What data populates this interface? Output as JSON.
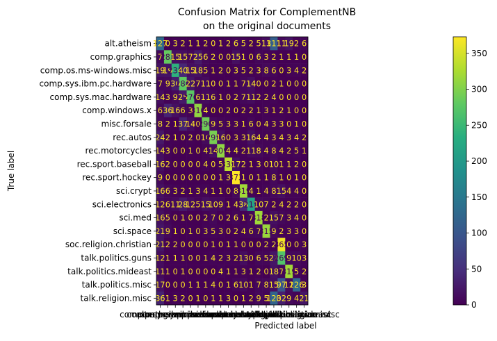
{
  "chart_data": {
    "type": "heatmap",
    "title": [
      "Confusion Matrix for ComplementNB",
      "on the original documents"
    ],
    "xlabel": "Predicted label",
    "ylabel": "True label",
    "labels": [
      "alt.atheism",
      "comp.graphics",
      "comp.os.ms-windows.misc",
      "comp.sys.ibm.pc.hardware",
      "comp.sys.mac.hardware",
      "comp.windows.x",
      "misc.forsale",
      "rec.autos",
      "rec.motorcycles",
      "rec.sport.baseball",
      "rec.sport.hockey",
      "sci.crypt",
      "sci.electronics",
      "sci.med",
      "sci.space",
      "soc.religion.christian",
      "talk.politics.guns",
      "talk.politics.mideast",
      "talk.politics.misc",
      "talk.religion.misc"
    ],
    "matrix": [
      [
        127,
        0,
        3,
        2,
        1,
        1,
        2,
        0,
        1,
        2,
        6,
        5,
        2,
        5,
        13,
        111,
        11,
        19,
        2,
        6
      ],
      [
        7,
        283,
        15,
        15,
        7,
        25,
        6,
        2,
        0,
        0,
        15,
        1,
        0,
        6,
        3,
        2,
        1,
        1,
        1,
        0
      ],
      [
        19,
        19,
        238,
        40,
        15,
        18,
        5,
        1,
        2,
        0,
        3,
        5,
        2,
        3,
        8,
        6,
        0,
        3,
        4,
        2
      ],
      [
        7,
        9,
        30,
        280,
        22,
        7,
        11,
        0,
        0,
        1,
        1,
        7,
        14,
        0,
        0,
        2,
        1,
        0,
        0,
        0
      ],
      [
        14,
        3,
        9,
        25,
        276,
        6,
        11,
        6,
        1,
        0,
        2,
        7,
        11,
        2,
        2,
        4,
        0,
        0,
        0,
        0
      ],
      [
        6,
        36,
        16,
        6,
        3,
        310,
        4,
        0,
        0,
        2,
        0,
        2,
        2,
        1,
        3,
        1,
        2,
        1,
        0,
        0
      ],
      [
        8,
        2,
        1,
        37,
        14,
        0,
        290,
        9,
        5,
        3,
        3,
        1,
        6,
        0,
        4,
        3,
        3,
        0,
        1,
        0
      ],
      [
        24,
        2,
        1,
        0,
        2,
        0,
        10,
        295,
        16,
        0,
        3,
        3,
        16,
        4,
        4,
        3,
        4,
        3,
        4,
        2
      ],
      [
        14,
        3,
        0,
        0,
        1,
        0,
        4,
        14,
        309,
        4,
        4,
        2,
        11,
        8,
        4,
        8,
        4,
        2,
        5,
        1
      ],
      [
        16,
        2,
        0,
        0,
        0,
        0,
        4,
        0,
        5,
        335,
        17,
        2,
        1,
        3,
        0,
        10,
        1,
        1,
        2,
        0
      ],
      [
        9,
        0,
        0,
        0,
        0,
        0,
        0,
        0,
        1,
        3,
        373,
        1,
        0,
        1,
        1,
        8,
        1,
        0,
        1,
        0
      ],
      [
        16,
        6,
        3,
        2,
        1,
        3,
        4,
        1,
        1,
        0,
        8,
        319,
        4,
        1,
        4,
        8,
        15,
        4,
        4,
        0
      ],
      [
        12,
        6,
        11,
        28,
        12,
        5,
        15,
        10,
        9,
        1,
        4,
        38,
        215,
        10,
        7,
        2,
        4,
        2,
        2,
        0
      ],
      [
        16,
        5,
        0,
        1,
        0,
        0,
        2,
        7,
        0,
        2,
        6,
        1,
        7,
        318,
        2,
        15,
        7,
        3,
        4,
        0
      ],
      [
        21,
        9,
        1,
        0,
        1,
        0,
        3,
        5,
        3,
        0,
        2,
        4,
        6,
        7,
        315,
        9,
        2,
        3,
        3,
        0
      ],
      [
        21,
        2,
        2,
        0,
        0,
        0,
        0,
        1,
        0,
        1,
        1,
        0,
        0,
        0,
        2,
        2,
        365,
        0,
        0,
        3
      ],
      [
        12,
        1,
        1,
        1,
        0,
        0,
        1,
        4,
        2,
        3,
        2,
        13,
        0,
        6,
        5,
        22,
        269,
        9,
        10,
        3
      ],
      [
        11,
        1,
        0,
        1,
        0,
        0,
        0,
        0,
        4,
        1,
        1,
        3,
        1,
        2,
        0,
        18,
        7,
        319,
        5,
        2
      ],
      [
        17,
        0,
        0,
        0,
        1,
        1,
        1,
        4,
        0,
        1,
        6,
        10,
        1,
        7,
        8,
        15,
        97,
        12,
        126,
        3
      ],
      [
        36,
        1,
        3,
        2,
        0,
        1,
        0,
        1,
        1,
        3,
        0,
        1,
        2,
        9,
        5,
        120,
        32,
        9,
        4,
        21
      ]
    ],
    "colorbar": {
      "ticks": [
        0,
        50,
        100,
        150,
        200,
        250,
        300,
        350
      ],
      "vmin": 0,
      "vmax": 373,
      "colormap": "viridis"
    }
  }
}
